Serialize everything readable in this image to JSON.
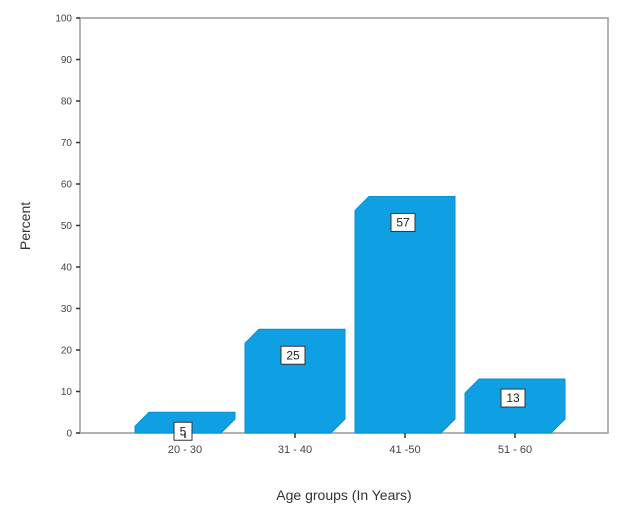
{
  "chart_data": {
    "type": "bar",
    "categories": [
      "20 - 30",
      "31 - 40",
      "41 -50",
      "51 - 60"
    ],
    "values": [
      5,
      25,
      57,
      13
    ],
    "data_labels": [
      "5",
      "25",
      "57",
      "13"
    ],
    "title": "",
    "xlabel": "Age groups (In Years)",
    "ylabel": "Percent",
    "ylim": [
      0,
      100
    ],
    "yticks": [
      0,
      10,
      20,
      30,
      40,
      50,
      60,
      70,
      80,
      90,
      100
    ],
    "grid": false,
    "legend": "none",
    "bar_color": "#0f9fe3",
    "frame_color": "#999999"
  }
}
